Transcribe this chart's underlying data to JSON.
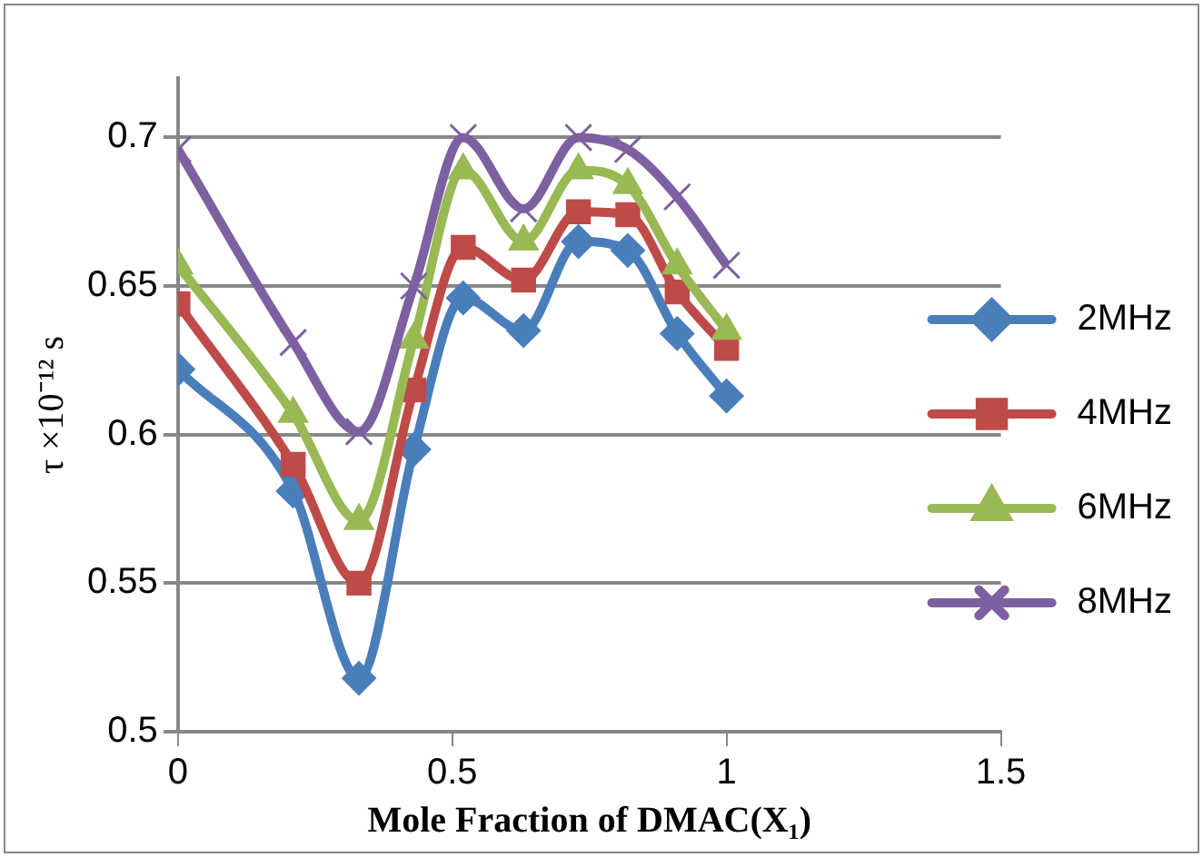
{
  "chart_data": {
    "type": "line",
    "xlabel": "Mole Fraction of DMAC(X₁)",
    "ylabel": "τ ×10⁻¹² s",
    "x": [
      0,
      0.21,
      0.33,
      0.43,
      0.52,
      0.63,
      0.73,
      0.82,
      0.91,
      1.0
    ],
    "series": [
      {
        "name": "2MHz",
        "color": "#4a7ebb",
        "marker": "diamond",
        "values": [
          0.622,
          0.581,
          0.518,
          0.595,
          0.646,
          0.635,
          0.665,
          0.662,
          0.634,
          0.613
        ]
      },
      {
        "name": "4MHz",
        "color": "#be4b48",
        "marker": "square",
        "values": [
          0.644,
          0.59,
          0.55,
          0.615,
          0.663,
          0.652,
          0.675,
          0.674,
          0.648,
          0.629
        ]
      },
      {
        "name": "6MHz",
        "color": "#98b954",
        "marker": "triangle",
        "values": [
          0.657,
          0.607,
          0.571,
          0.632,
          0.689,
          0.665,
          0.689,
          0.684,
          0.657,
          0.635
        ]
      },
      {
        "name": "8MHz",
        "color": "#7d60a0",
        "marker": "cross",
        "values": [
          0.696,
          0.631,
          0.601,
          0.65,
          0.7,
          0.676,
          0.7,
          0.696,
          0.68,
          0.657
        ]
      }
    ],
    "xlim": [
      0,
      1.5
    ],
    "xticks": [
      0,
      0.5,
      1,
      1.5
    ],
    "ylim": [
      0.5,
      0.72
    ],
    "yticks": [
      0.5,
      0.55,
      0.6,
      0.65,
      0.7
    ],
    "grid": "y",
    "legend": "right"
  }
}
